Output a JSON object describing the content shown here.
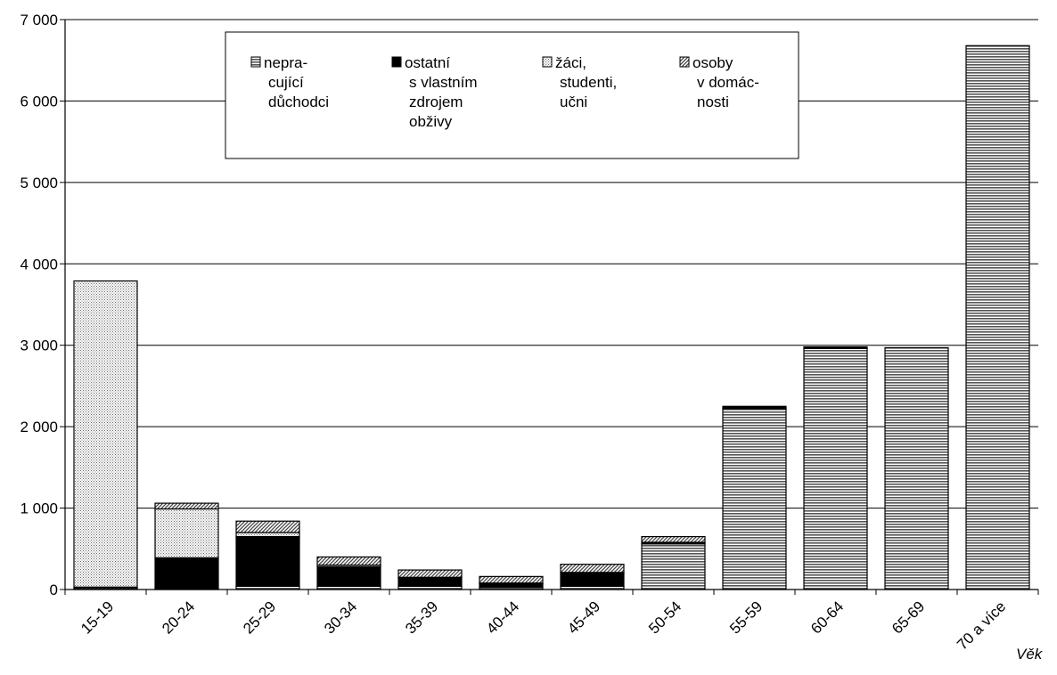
{
  "chart_data": {
    "type": "bar",
    "stacked": true,
    "categories": [
      "15-19",
      "20-24",
      "25-29",
      "30-34",
      "35-39",
      "40-44",
      "45-49",
      "50-54",
      "55-59",
      "60-64",
      "65-69",
      "70 a více"
    ],
    "series": [
      {
        "name": "nepra-\ncující\ndůchodci",
        "pattern": "horizontal-lines",
        "values": [
          20,
          10,
          40,
          40,
          40,
          30,
          40,
          560,
          2220,
          2960,
          2970,
          6680
        ]
      },
      {
        "name": "ostatní\ns vlastním\nzdrojem\nobživy",
        "pattern": "solid-black",
        "values": [
          10,
          380,
          610,
          240,
          100,
          40,
          160,
          20,
          30,
          20,
          0,
          0
        ]
      },
      {
        "name": "žáci,\nstudenti,\nučni",
        "pattern": "dotted",
        "values": [
          3760,
          600,
          50,
          20,
          10,
          10,
          10,
          0,
          0,
          0,
          0,
          0
        ]
      },
      {
        "name": "osoby\nv domác-\nnosti",
        "pattern": "diagonal-lines",
        "values": [
          0,
          70,
          140,
          100,
          90,
          80,
          100,
          70,
          0,
          0,
          0,
          0
        ]
      }
    ],
    "yticks": [
      "0",
      "1 000",
      "2 000",
      "3 000",
      "4 000",
      "5 000",
      "6 000",
      "7 000"
    ],
    "ylim": [
      0,
      7000
    ],
    "xlabel": "Věk",
    "ylabel": "",
    "title": "",
    "grid": true,
    "legend": "top-center"
  }
}
